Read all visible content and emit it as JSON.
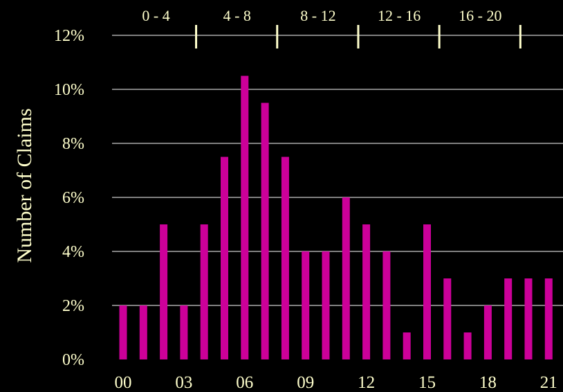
{
  "chart_data": {
    "type": "bar",
    "ylabel": "Number of Claims",
    "xlabel": "",
    "ylim": [
      0,
      12
    ],
    "y_tick_labels": [
      "0%",
      "2%",
      "4%",
      "6%",
      "8%",
      "10%",
      "12%"
    ],
    "y_tick_values": [
      0,
      2,
      4,
      6,
      8,
      10,
      12
    ],
    "categories": [
      "00",
      "01",
      "02",
      "03",
      "04",
      "05",
      "06",
      "07",
      "08",
      "09",
      "10",
      "11",
      "12",
      "13",
      "14",
      "15",
      "16",
      "17",
      "18",
      "19",
      "20",
      "21"
    ],
    "x_tick_labels": [
      "00",
      "03",
      "06",
      "09",
      "12",
      "15",
      "18",
      "21"
    ],
    "values": [
      2,
      2,
      5,
      2,
      5,
      7.5,
      10.5,
      9.5,
      7.5,
      4,
      4,
      6,
      5,
      4,
      1,
      5,
      3,
      1,
      2,
      3,
      3,
      3
    ],
    "group_labels": [
      "0 - 4",
      "4 - 8",
      "8 - 12",
      "12 - 16",
      "16 - 20"
    ],
    "group_separators": [
      4,
      8,
      12,
      16,
      20
    ],
    "grid": true,
    "colors": {
      "background": "#000000",
      "bar": "#CC0099",
      "text": "#FFFFCC",
      "grid": "#FFFFFF",
      "separator": "#FFFFCC"
    }
  }
}
